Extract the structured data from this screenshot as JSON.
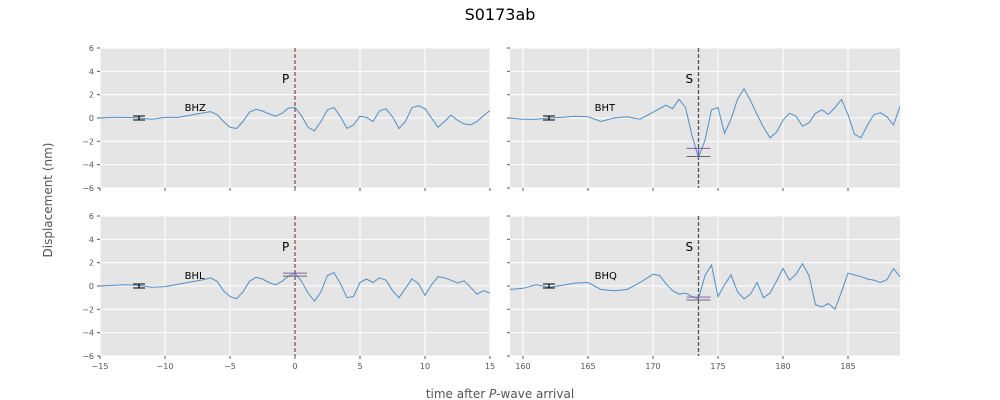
{
  "chart_data": {
    "type": "line",
    "title": "S0173ab",
    "xlabel_prefix": "time after ",
    "xlabel_italic": "P",
    "xlabel_suffix": "-wave arrival",
    "ylabel": "Displacement (nm)",
    "ylim": [
      -6,
      6
    ],
    "yticks": [
      -6,
      -4,
      -2,
      0,
      2,
      4,
      6
    ],
    "grid": true,
    "colors": {
      "background": "#e5e5e5",
      "grid": "#ffffff",
      "trace": "#4f8fc7",
      "marker": "#8b4f5a",
      "phase_line": "#555555",
      "bracket_purple": "#8a5ca8"
    },
    "panels": [
      {
        "id": "tl",
        "xlim": [
          -15,
          15
        ],
        "xticks": [
          -15,
          -10,
          -5,
          0,
          5,
          10,
          15
        ],
        "show_xtick_labels": false,
        "show_ytick_labels": true,
        "channel": "BHZ",
        "phase": "P",
        "phase_time": 0,
        "error_bar": {
          "x": -12,
          "y": 0
        },
        "pick_bracket": null,
        "trace": {
          "x": [
            -15,
            -14,
            -13,
            -12,
            -11,
            -10,
            -9,
            -8,
            -7,
            -6.5,
            -6,
            -5.5,
            -5,
            -4.5,
            -4,
            -3.5,
            -3,
            -2.5,
            -2,
            -1.5,
            -1,
            -0.5,
            0,
            0.5,
            1,
            1.5,
            2,
            2.5,
            3,
            3.5,
            4,
            4.5,
            5,
            5.5,
            6,
            6.5,
            7,
            7.5,
            8,
            8.5,
            9,
            9.5,
            10,
            10.5,
            11,
            11.5,
            12,
            12.5,
            13,
            13.5,
            14,
            14.5,
            15
          ],
          "y": [
            0,
            0.05,
            0.05,
            0.0,
            -0.1,
            0.05,
            0.05,
            0.25,
            0.45,
            0.55,
            0.3,
            -0.3,
            -0.8,
            -0.9,
            -0.3,
            0.5,
            0.75,
            0.6,
            0.35,
            0.15,
            0.4,
            0.85,
            0.9,
            0.2,
            -0.8,
            -1.1,
            -0.3,
            0.7,
            0.9,
            0.1,
            -0.9,
            -0.6,
            0.15,
            0.05,
            -0.3,
            0.6,
            0.8,
            0.1,
            -0.9,
            -0.3,
            0.9,
            1.05,
            0.8,
            0.0,
            -0.8,
            -0.3,
            0.25,
            -0.2,
            -0.5,
            -0.6,
            -0.3,
            0.2,
            0.65
          ]
        }
      },
      {
        "id": "tr",
        "xlim": [
          159,
          189
        ],
        "xticks": [
          160,
          165,
          170,
          175,
          180,
          185
        ],
        "show_xtick_labels": false,
        "show_ytick_labels": false,
        "channel": "BHT",
        "phase": "S",
        "phase_time": 173.5,
        "error_bar": {
          "x": 162,
          "y": 0
        },
        "pick_bracket": {
          "y_top": -2.6,
          "y_bottom": -3.3
        },
        "trace": {
          "x": [
            159,
            160,
            161,
            162,
            163,
            164,
            165,
            166,
            167,
            168,
            169,
            170,
            171,
            171.5,
            172,
            172.5,
            173,
            173.5,
            174,
            174.5,
            175,
            175.5,
            176,
            176.5,
            177,
            177.5,
            178,
            178.5,
            179,
            179.5,
            180,
            180.5,
            181,
            181.5,
            182,
            182.5,
            183,
            183.5,
            184,
            184.5,
            185,
            185.5,
            186,
            186.5,
            187,
            187.5,
            188,
            188.5,
            189
          ],
          "y": [
            0.0,
            -0.1,
            -0.1,
            0.0,
            0.05,
            0.15,
            0.1,
            -0.3,
            0.0,
            0.1,
            -0.1,
            0.5,
            1.1,
            0.8,
            1.6,
            0.9,
            -1.5,
            -3.4,
            -1.9,
            0.7,
            0.9,
            -1.3,
            -0.1,
            1.6,
            2.5,
            1.5,
            0.3,
            -0.8,
            -1.7,
            -1.2,
            -0.2,
            0.4,
            0.15,
            -0.7,
            -0.4,
            0.4,
            0.7,
            0.3,
            0.9,
            1.6,
            0.3,
            -1.4,
            -1.7,
            -0.6,
            0.3,
            0.45,
            0.1,
            -0.6,
            1.0
          ]
        }
      },
      {
        "id": "bl",
        "xlim": [
          -15,
          15
        ],
        "xticks": [
          -15,
          -10,
          -5,
          0,
          5,
          10,
          15
        ],
        "show_xtick_labels": true,
        "show_ytick_labels": true,
        "channel": "BHL",
        "phase": "P",
        "phase_time": 0,
        "error_bar": {
          "x": -12,
          "y": 0
        },
        "pick_bracket": {
          "y_top": 1.1,
          "y_bottom": 0.85
        },
        "trace": {
          "x": [
            -15,
            -14,
            -13,
            -12,
            -11,
            -10,
            -9,
            -8,
            -7,
            -6.5,
            -6,
            -5.5,
            -5,
            -4.5,
            -4,
            -3.5,
            -3,
            -2.5,
            -2,
            -1.5,
            -1,
            -0.5,
            0,
            0.5,
            1,
            1.5,
            2,
            2.5,
            3,
            3.5,
            4,
            4.5,
            5,
            5.5,
            6,
            6.5,
            7,
            7.5,
            8,
            8.5,
            9,
            9.5,
            10,
            10.5,
            11,
            11.5,
            12,
            12.5,
            13,
            13.5,
            14,
            14.5,
            15
          ],
          "y": [
            0.0,
            0.05,
            0.1,
            0.05,
            -0.1,
            -0.05,
            0.15,
            0.35,
            0.55,
            0.7,
            0.4,
            -0.4,
            -0.9,
            -1.1,
            -0.5,
            0.4,
            0.75,
            0.6,
            0.3,
            0.1,
            0.4,
            0.85,
            1.1,
            0.4,
            -0.6,
            -1.3,
            -0.5,
            0.9,
            1.15,
            0.2,
            -1.0,
            -0.9,
            0.3,
            0.6,
            0.3,
            0.7,
            0.5,
            -0.4,
            -1.0,
            -0.2,
            0.6,
            0.2,
            -0.8,
            0.1,
            0.8,
            0.7,
            0.5,
            0.25,
            0.45,
            -0.1,
            -0.7,
            -0.4,
            -0.6
          ]
        }
      },
      {
        "id": "br",
        "xlim": [
          159,
          189
        ],
        "xticks": [
          160,
          165,
          170,
          175,
          180,
          185
        ],
        "show_xtick_labels": true,
        "show_ytick_labels": false,
        "channel": "BHQ",
        "phase": "S",
        "phase_time": 173.5,
        "error_bar": {
          "x": 162,
          "y": 0
        },
        "pick_bracket": {
          "y_top": -0.95,
          "y_bottom": -1.2
        },
        "trace": {
          "x": [
            159,
            160,
            161,
            162,
            163,
            164,
            165,
            166,
            167,
            168,
            169,
            170,
            170.5,
            171,
            171.5,
            172,
            172.5,
            173,
            173.5,
            174,
            174.5,
            175,
            175.5,
            176,
            176.5,
            177,
            177.5,
            178,
            178.5,
            179,
            179.5,
            180,
            180.5,
            181,
            181.5,
            182,
            182.5,
            183,
            183.5,
            184,
            184.5,
            185,
            185.5,
            186,
            186.5,
            187,
            187.5,
            188,
            188.5,
            189
          ],
          "y": [
            -0.3,
            -0.2,
            0.1,
            -0.1,
            0.05,
            0.25,
            0.3,
            -0.3,
            -0.4,
            -0.3,
            0.3,
            1.0,
            0.9,
            0.2,
            -0.4,
            -0.7,
            -0.6,
            -0.9,
            -1.1,
            0.9,
            1.8,
            -0.9,
            0.1,
            0.95,
            -0.5,
            -1.1,
            -0.7,
            0.3,
            -1.0,
            -0.6,
            0.4,
            1.5,
            0.5,
            1.0,
            1.9,
            0.9,
            -1.6,
            -1.8,
            -1.5,
            -2.0,
            -0.5,
            1.1,
            0.95,
            0.8,
            0.6,
            0.5,
            0.3,
            0.55,
            1.5,
            0.8
          ]
        }
      }
    ]
  }
}
